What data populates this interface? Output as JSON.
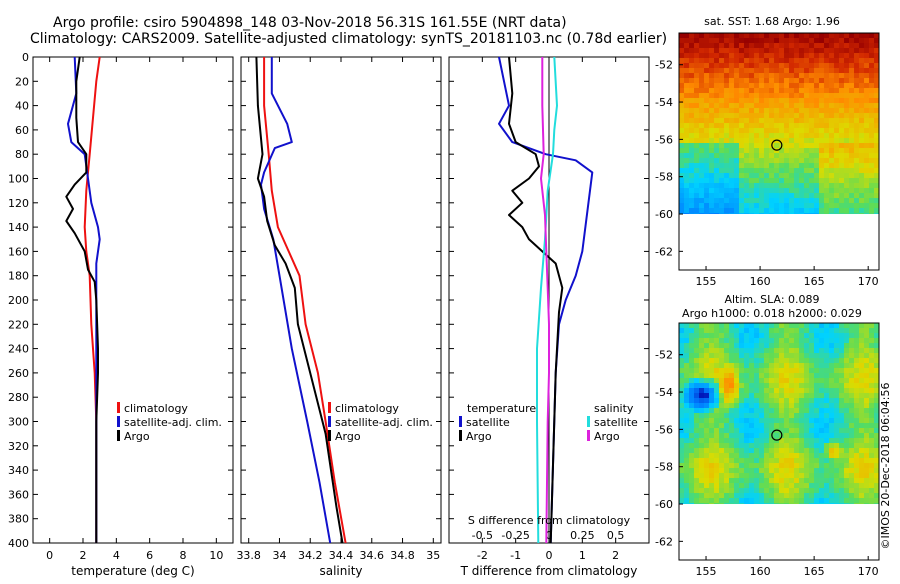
{
  "title_line1": "Argo profile: csiro 5904898_148 03-Nov-2018 56.31S 161.55E (NRT data)",
  "title_line2": "Climatology: CARS2009. Satellite-adjusted climatology: synTS_20181103.nc (0.78d earlier)",
  "watermark": "©IMOS 20-Dec-2018 06:04:56",
  "colors": {
    "climatology": "#ee1111",
    "satellite": "#1111cc",
    "argo": "#000000",
    "sal_diff": "#dd22dd",
    "temp_diff_sat": "#22dddd"
  },
  "depth_ticks": [
    "0",
    "20",
    "40",
    "60",
    "80",
    "100",
    "120",
    "140",
    "160",
    "180",
    "200",
    "220",
    "240",
    "260",
    "280",
    "300",
    "320",
    "340",
    "360",
    "380",
    "400"
  ],
  "chart_data": [
    {
      "type": "line",
      "id": "temperature",
      "xlabel": "temperature (deg C)",
      "xlim": [
        -1,
        11
      ],
      "ylim": [
        0,
        400
      ],
      "xticks": [
        "0",
        "2",
        "4",
        "6",
        "8",
        "10"
      ],
      "xtick_values": [
        0,
        2,
        4,
        6,
        8,
        10
      ],
      "legend": [
        "climatology",
        "satellite-adj. clim.",
        "Argo"
      ],
      "series": [
        {
          "name": "climatology",
          "color": "climatology",
          "points": [
            [
              3.0,
              0
            ],
            [
              2.8,
              20
            ],
            [
              2.6,
              50
            ],
            [
              2.4,
              80
            ],
            [
              2.2,
              110
            ],
            [
              2.1,
              140
            ],
            [
              2.2,
              160
            ],
            [
              2.4,
              180
            ],
            [
              2.5,
              220
            ],
            [
              2.7,
              260
            ],
            [
              2.8,
              300
            ],
            [
              2.8,
              400
            ]
          ]
        },
        {
          "name": "satellite-adj. clim.",
          "color": "satellite",
          "points": [
            [
              1.5,
              0
            ],
            [
              1.6,
              30
            ],
            [
              1.1,
              55
            ],
            [
              1.3,
              70
            ],
            [
              2.1,
              80
            ],
            [
              2.3,
              100
            ],
            [
              2.5,
              120
            ],
            [
              2.9,
              140
            ],
            [
              3.0,
              150
            ],
            [
              2.8,
              170
            ],
            [
              2.8,
              260
            ],
            [
              2.8,
              400
            ]
          ]
        },
        {
          "name": "Argo",
          "color": "argo",
          "points": [
            [
              1.8,
              0
            ],
            [
              1.6,
              20
            ],
            [
              1.6,
              50
            ],
            [
              1.7,
              70
            ],
            [
              2.2,
              80
            ],
            [
              2.2,
              95
            ],
            [
              1.5,
              105
            ],
            [
              1.0,
              115
            ],
            [
              1.4,
              125
            ],
            [
              1.0,
              135
            ],
            [
              1.5,
              145
            ],
            [
              2.1,
              160
            ],
            [
              2.3,
              175
            ],
            [
              2.7,
              185
            ],
            [
              2.8,
              200
            ],
            [
              2.9,
              240
            ],
            [
              2.9,
              260
            ],
            [
              2.8,
              300
            ],
            [
              2.8,
              400
            ]
          ]
        }
      ]
    },
    {
      "type": "line",
      "id": "salinity",
      "xlabel": "salinity",
      "xlim": [
        33.75,
        35.05
      ],
      "ylim": [
        0,
        400
      ],
      "xticks": [
        "33.8",
        "34",
        "34.2",
        "34.4",
        "34.6",
        "34.8",
        "35"
      ],
      "xtick_values": [
        33.8,
        34.0,
        34.2,
        34.4,
        34.6,
        34.8,
        35.0
      ],
      "legend": [
        "climatology",
        "satellite-adj. clim.",
        "Argo"
      ],
      "series": [
        {
          "name": "climatology",
          "color": "climatology",
          "points": [
            [
              33.9,
              0
            ],
            [
              33.9,
              40
            ],
            [
              33.93,
              80
            ],
            [
              33.95,
              110
            ],
            [
              33.99,
              140
            ],
            [
              34.06,
              160
            ],
            [
              34.13,
              180
            ],
            [
              34.17,
              220
            ],
            [
              34.25,
              260
            ],
            [
              34.3,
              300
            ],
            [
              34.36,
              350
            ],
            [
              34.43,
              400
            ]
          ]
        },
        {
          "name": "satellite-adj. clim.",
          "color": "satellite",
          "points": [
            [
              33.95,
              0
            ],
            [
              33.95,
              30
            ],
            [
              34.05,
              55
            ],
            [
              34.08,
              70
            ],
            [
              33.97,
              75
            ],
            [
              33.9,
              95
            ],
            [
              33.88,
              105
            ],
            [
              33.9,
              125
            ],
            [
              33.96,
              150
            ],
            [
              34.0,
              180
            ],
            [
              34.08,
              240
            ],
            [
              34.18,
              300
            ],
            [
              34.26,
              350
            ],
            [
              34.33,
              400
            ]
          ]
        },
        {
          "name": "Argo",
          "color": "argo",
          "points": [
            [
              33.85,
              0
            ],
            [
              33.86,
              40
            ],
            [
              33.89,
              80
            ],
            [
              33.86,
              100
            ],
            [
              33.9,
              115
            ],
            [
              33.92,
              135
            ],
            [
              33.97,
              155
            ],
            [
              34.04,
              170
            ],
            [
              34.1,
              190
            ],
            [
              34.12,
              220
            ],
            [
              34.2,
              260
            ],
            [
              34.3,
              310
            ],
            [
              34.37,
              370
            ],
            [
              34.41,
              400
            ]
          ]
        }
      ]
    },
    {
      "type": "line",
      "id": "difference",
      "xlabel": "T difference from climatology",
      "xlim": [
        -3,
        3
      ],
      "ylim": [
        0,
        400
      ],
      "xticks": [
        "-2",
        "-1",
        "0",
        "1",
        "2"
      ],
      "xtick_values": [
        -2,
        -1,
        0,
        1,
        2
      ],
      "secondary_axis_label": "S difference from climatology",
      "secondary_ticks": [
        "-0.5",
        "-0.25",
        "0",
        "0.25",
        "0.5"
      ],
      "secondary_tick_values": [
        -0.5,
        -0.25,
        0,
        0.25,
        0.5
      ],
      "legend_headers": [
        "temperature",
        "salinity"
      ],
      "legend_left": [
        "satellite",
        "Argo"
      ],
      "legend_right": [
        "satellite",
        "Argo"
      ],
      "series": [
        {
          "name": "temperature satellite",
          "color": "satellite",
          "points": [
            [
              -1.5,
              0
            ],
            [
              -1.2,
              40
            ],
            [
              -1.5,
              55
            ],
            [
              -1.1,
              70
            ],
            [
              -0.1,
              80
            ],
            [
              0.8,
              85
            ],
            [
              1.3,
              95
            ],
            [
              1.0,
              160
            ],
            [
              0.8,
              180
            ],
            [
              0.5,
              200
            ],
            [
              0.3,
              220
            ],
            [
              0.2,
              260
            ],
            [
              0.05,
              400
            ]
          ]
        },
        {
          "name": "temperature Argo",
          "color": "argo",
          "points": [
            [
              -1.2,
              0
            ],
            [
              -1.1,
              30
            ],
            [
              -1.2,
              55
            ],
            [
              -1.0,
              70
            ],
            [
              -0.4,
              80
            ],
            [
              -0.3,
              90
            ],
            [
              -0.6,
              100
            ],
            [
              -1.1,
              110
            ],
            [
              -0.8,
              120
            ],
            [
              -1.2,
              130
            ],
            [
              -0.8,
              140
            ],
            [
              -0.6,
              150
            ],
            [
              -0.2,
              160
            ],
            [
              0.2,
              170
            ],
            [
              0.4,
              190
            ],
            [
              0.3,
              210
            ],
            [
              0.2,
              260
            ],
            [
              0.05,
              400
            ]
          ]
        },
        {
          "name": "salinity satellite",
          "color": "temp_diff_sat",
          "points": [
            [
              0.04,
              0
            ],
            [
              0.06,
              40
            ],
            [
              0.04,
              60
            ],
            [
              0.03,
              80
            ],
            [
              -0.01,
              110
            ],
            [
              -0.03,
              150
            ],
            [
              -0.06,
              190
            ],
            [
              -0.09,
              240
            ],
            [
              -0.09,
              300
            ],
            [
              -0.08,
              400
            ]
          ]
        },
        {
          "name": "salinity Argo",
          "color": "sal_diff",
          "points": [
            [
              -0.05,
              0
            ],
            [
              -0.05,
              40
            ],
            [
              -0.04,
              80
            ],
            [
              -0.06,
              100
            ],
            [
              -0.03,
              130
            ],
            [
              -0.02,
              160
            ],
            [
              -0.01,
              190
            ],
            [
              0.0,
              220
            ],
            [
              0.0,
              260
            ],
            [
              -0.01,
              300
            ],
            [
              -0.02,
              400
            ]
          ]
        }
      ]
    },
    {
      "type": "heatmap",
      "id": "sst",
      "title": "sat. SST: 1.68 Argo: 1.96",
      "xticks": [
        "155",
        "160",
        "165",
        "170"
      ],
      "xtick_values": [
        155,
        160,
        165,
        170
      ],
      "yticks": [
        "-52",
        "-54",
        "-56",
        "-58",
        "-60",
        "-62"
      ],
      "ytick_values": [
        -52,
        -54,
        -56,
        -58,
        -60,
        -62
      ],
      "xlim": [
        152.5,
        171
      ],
      "ylim": [
        -63,
        -50.3
      ],
      "data_ylim_min": -60,
      "marker": [
        161.55,
        -56.31
      ]
    },
    {
      "type": "heatmap",
      "id": "sla",
      "title": "Altim. SLA: 0.089",
      "subtitle": "Argo h1000: 0.018 h2000: 0.029",
      "xticks": [
        "155",
        "160",
        "165",
        "170"
      ],
      "xtick_values": [
        155,
        160,
        165,
        170
      ],
      "yticks": [
        "-52",
        "-54",
        "-56",
        "-58",
        "-60",
        "-62"
      ],
      "ytick_values": [
        -52,
        -54,
        -56,
        -58,
        -60,
        -62
      ],
      "xlim": [
        152.5,
        171
      ],
      "ylim": [
        -63,
        -50.3
      ],
      "data_ylim_min": -60,
      "marker": [
        161.55,
        -56.31
      ]
    }
  ]
}
